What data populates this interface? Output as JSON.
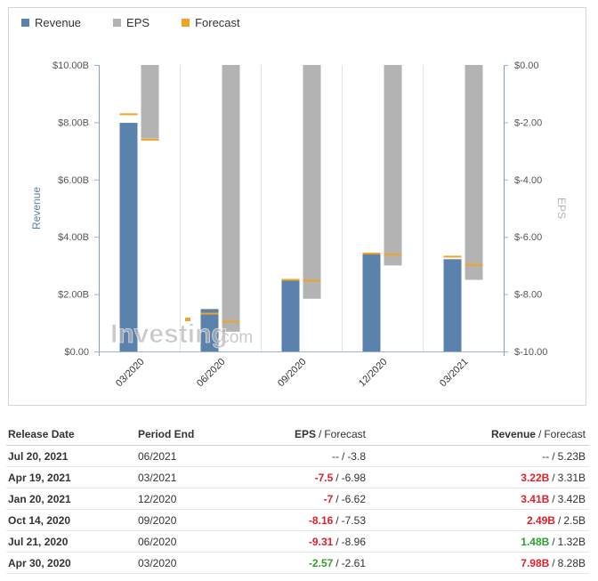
{
  "chart_data": {
    "type": "bar",
    "categories": [
      "03/2020",
      "06/2020",
      "09/2020",
      "12/2020",
      "03/2021"
    ],
    "series": [
      {
        "name": "Revenue",
        "axis": "left",
        "values": [
          7.98,
          1.48,
          2.49,
          3.41,
          3.22
        ],
        "forecast": [
          8.28,
          1.32,
          2.5,
          3.42,
          3.31
        ],
        "color": "#5b82ad"
      },
      {
        "name": "EPS",
        "axis": "right",
        "values": [
          -2.57,
          -9.31,
          -8.16,
          -7,
          -7.5
        ],
        "forecast": [
          -2.61,
          -8.96,
          -7.53,
          -6.62,
          -6.98
        ],
        "color": "#b3b3b3"
      }
    ],
    "forecast_color": "#f0a422",
    "left_axis": {
      "title": "Revenue",
      "ylim": [
        0,
        10
      ],
      "ticks": [
        "$0.00",
        "$2.00B",
        "$4.00B",
        "$6.00B",
        "$8.00B",
        "$10.00B"
      ]
    },
    "right_axis": {
      "title": "EPS",
      "ylim": [
        -10,
        0
      ],
      "ticks": [
        "$-10.00",
        "$-8.00",
        "$-6.00",
        "$-4.00",
        "$-2.00",
        "$0.00"
      ]
    }
  },
  "legend": {
    "revenue": "Revenue",
    "eps": "EPS",
    "forecast": "Forecast"
  },
  "watermark": {
    "brand": "Investing",
    "suffix": ".com"
  },
  "table": {
    "headers": {
      "release_date": "Release Date",
      "period_end": "Period End",
      "eps": "EPS",
      "eps_forecast": "Forecast",
      "revenue": "Revenue",
      "revenue_forecast": "Forecast",
      "separator": "/"
    },
    "rows": [
      {
        "release_date": "Jul 20, 2021",
        "period_end": "06/2021",
        "eps": "--",
        "eps_status": "neu",
        "eps_forecast": "-3.8",
        "revenue": "--",
        "revenue_status": "neu",
        "revenue_forecast": "5.23B"
      },
      {
        "release_date": "Apr 19, 2021",
        "period_end": "03/2021",
        "eps": "-7.5",
        "eps_status": "neg",
        "eps_forecast": "-6.98",
        "revenue": "3.22B",
        "revenue_status": "neg",
        "revenue_forecast": "3.31B"
      },
      {
        "release_date": "Jan 20, 2021",
        "period_end": "12/2020",
        "eps": "-7",
        "eps_status": "neg",
        "eps_forecast": "-6.62",
        "revenue": "3.41B",
        "revenue_status": "neg",
        "revenue_forecast": "3.42B"
      },
      {
        "release_date": "Oct 14, 2020",
        "period_end": "09/2020",
        "eps": "-8.16",
        "eps_status": "neg",
        "eps_forecast": "-7.53",
        "revenue": "2.49B",
        "revenue_status": "neg",
        "revenue_forecast": "2.5B"
      },
      {
        "release_date": "Jul 21, 2020",
        "period_end": "06/2020",
        "eps": "-9.31",
        "eps_status": "neg",
        "eps_forecast": "-8.96",
        "revenue": "1.48B",
        "revenue_status": "pos",
        "revenue_forecast": "1.32B"
      },
      {
        "release_date": "Apr 30, 2020",
        "period_end": "03/2020",
        "eps": "-2.57",
        "eps_status": "pos",
        "eps_forecast": "-2.61",
        "revenue": "7.98B",
        "revenue_status": "neg",
        "revenue_forecast": "8.28B"
      }
    ]
  }
}
